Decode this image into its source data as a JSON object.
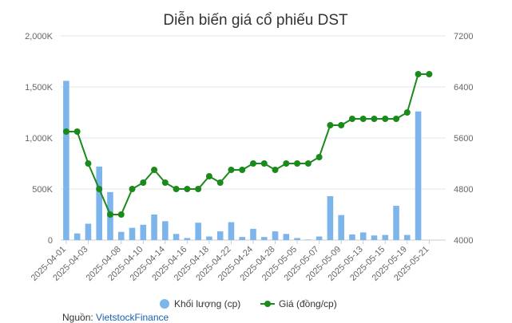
{
  "chart_data": {
    "type": "bar+line",
    "title": "Diễn biến giá cổ phiếu DST",
    "categories": [
      "2025-04-01",
      "2025-04-02",
      "2025-04-03",
      "2025-04-04",
      "2025-04-07",
      "2025-04-08",
      "2025-04-09",
      "2025-04-10",
      "2025-04-11",
      "2025-04-14",
      "2025-04-15",
      "2025-04-16",
      "2025-04-17",
      "2025-04-18",
      "2025-04-21",
      "2025-04-22",
      "2025-04-23",
      "2025-04-24",
      "2025-04-25",
      "2025-04-28",
      "2025-04-29",
      "2025-05-05",
      "2025-05-06",
      "2025-05-07",
      "2025-05-08",
      "2025-05-09",
      "2025-05-12",
      "2025-05-13",
      "2025-05-14",
      "2025-05-15",
      "2025-05-16",
      "2025-05-19",
      "2025-05-20",
      "2025-05-21",
      "2025-05-22"
    ],
    "x_tick_labels": [
      "2025-04-01",
      "2025-04-03",
      "2025-04-08",
      "2025-04-10",
      "2025-04-14",
      "2025-04-16",
      "2025-04-18",
      "2025-04-22",
      "2025-04-24",
      "2025-04-28",
      "2025-05-05",
      "2025-05-07",
      "2025-05-09",
      "2025-05-13",
      "2025-05-15",
      "2025-05-19",
      "2025-05-21"
    ],
    "series": [
      {
        "name": "Khối lượng (cp)",
        "type": "bar",
        "axis": "left",
        "values": [
          1560000,
          65000,
          160000,
          720000,
          470000,
          80000,
          120000,
          150000,
          250000,
          185000,
          60000,
          20000,
          170000,
          35000,
          85000,
          175000,
          30000,
          110000,
          30000,
          85000,
          60000,
          20000,
          5000,
          35000,
          430000,
          245000,
          55000,
          75000,
          45000,
          50000,
          335000,
          50000,
          1260000,
          0,
          0
        ]
      },
      {
        "name": "Giá (đồng/cp)",
        "type": "line",
        "axis": "right",
        "values": [
          5700,
          5700,
          5200,
          4800,
          4400,
          4400,
          4800,
          4900,
          5100,
          4900,
          4800,
          4800,
          4800,
          5000,
          4900,
          5100,
          5100,
          5200,
          5200,
          5100,
          5200,
          5200,
          5200,
          5300,
          5800,
          5800,
          5900,
          5900,
          5900,
          5900,
          5900,
          6000,
          6600,
          6600,
          null
        ]
      }
    ],
    "y_left": {
      "ticks": [
        "0",
        "500K",
        "1,000K",
        "1,500K",
        "2,000K"
      ],
      "range": [
        0,
        2000000
      ]
    },
    "y_right": {
      "ticks": [
        "4000",
        "4800",
        "5600",
        "6400",
        "7200"
      ],
      "range": [
        4000,
        7200
      ]
    },
    "legend": {
      "position": "bottom"
    },
    "grid": true,
    "colors": {
      "bar": "#7cb5ec",
      "line": "#1a8a1a",
      "grid": "#e6e6e6",
      "axis": "#cccccc"
    }
  },
  "source": {
    "label": "Nguồn: ",
    "link_text": "VietstockFinance"
  }
}
